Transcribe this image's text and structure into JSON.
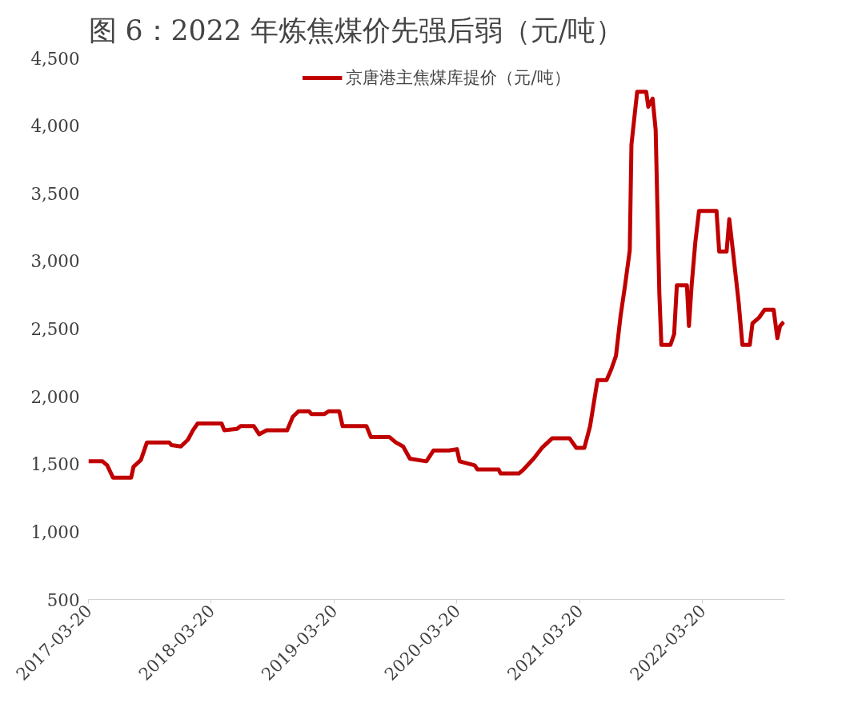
{
  "chart_data": {
    "type": "line",
    "title": "图 6：2022 年炼焦煤价先强后弱（元/吨）",
    "x": [
      "2017-03-20",
      "2017-05-01",
      "2017-05-15",
      "2017-06-01",
      "2017-07-25",
      "2017-08-01",
      "2017-08-23",
      "2017-09-10",
      "2017-11-15",
      "2017-11-22",
      "2017-12-20",
      "2018-01-10",
      "2018-01-25",
      "2018-02-08",
      "2018-04-20",
      "2018-04-28",
      "2018-06-05",
      "2018-06-15",
      "2018-07-25",
      "2018-08-10",
      "2018-09-01",
      "2018-11-01",
      "2018-11-18",
      "2018-12-05",
      "2019-01-05",
      "2019-01-12",
      "2019-02-20",
      "2019-03-05",
      "2019-04-05",
      "2019-04-15",
      "2019-06-25",
      "2019-07-08",
      "2019-09-01",
      "2019-09-20",
      "2019-10-12",
      "2019-11-01",
      "2019-12-20",
      "2020-01-10",
      "2020-02-25",
      "2020-03-20",
      "2020-03-28",
      "2020-05-12",
      "2020-05-20",
      "2020-07-22",
      "2020-07-28",
      "2020-09-20",
      "2020-10-04",
      "2020-11-03",
      "2020-11-28",
      "2020-12-28",
      "2021-02-18",
      "2021-03-10",
      "2021-04-03",
      "2021-04-20",
      "2021-05-12",
      "2021-06-08",
      "2021-06-22",
      "2021-07-06",
      "2021-07-20",
      "2021-08-02",
      "2021-08-16",
      "2021-08-21",
      "2021-09-07",
      "2021-10-04",
      "2021-10-10",
      "2021-10-23",
      "2021-11-01",
      "2021-11-12",
      "2021-11-18",
      "2021-12-15",
      "2021-12-26",
      "2022-01-03",
      "2022-02-02",
      "2022-02-08",
      "2022-02-16",
      "2022-02-27",
      "2022-03-10",
      "2022-05-01",
      "2022-05-09",
      "2022-05-31",
      "2022-06-08",
      "2022-06-19",
      "2022-07-06",
      "2022-07-17",
      "2022-08-08",
      "2022-08-16",
      "2022-09-04",
      "2022-09-21",
      "2022-10-18",
      "2022-10-29",
      "2022-11-06",
      "2022-11-17"
    ],
    "series": [
      {
        "name": "京唐港主焦煤库提价（元/吨）",
        "color": "#c00000",
        "values": [
          1520,
          1520,
          1490,
          1400,
          1400,
          1480,
          1530,
          1660,
          1660,
          1640,
          1630,
          1680,
          1750,
          1800,
          1800,
          1750,
          1760,
          1780,
          1780,
          1720,
          1750,
          1750,
          1850,
          1890,
          1890,
          1870,
          1870,
          1890,
          1890,
          1780,
          1780,
          1700,
          1700,
          1660,
          1630,
          1540,
          1520,
          1600,
          1600,
          1610,
          1520,
          1490,
          1460,
          1460,
          1430,
          1430,
          1460,
          1540,
          1620,
          1690,
          1690,
          1620,
          1620,
          1780,
          2120,
          2120,
          2200,
          2300,
          2600,
          2820,
          3080,
          3860,
          4250,
          4250,
          4140,
          4200,
          3970,
          2760,
          2380,
          2380,
          2460,
          2820,
          2820,
          2520,
          2820,
          3140,
          3370,
          3370,
          3070,
          3070,
          3310,
          3070,
          2690,
          2380,
          2380,
          2540,
          2580,
          2640,
          2640,
          2430,
          2520,
          2550
        ]
      }
    ],
    "xlim": [
      "2017-03-20",
      "2022-11-20"
    ],
    "xticks": [
      "2017-03-20",
      "2018-03-20",
      "2019-03-20",
      "2020-03-20",
      "2021-03-20",
      "2022-03-20"
    ],
    "ylim": [
      500,
      4500
    ],
    "yticks": [
      {
        "value": 500,
        "label": "500"
      },
      {
        "value": 1000,
        "label": "1,000"
      },
      {
        "value": 1500,
        "label": "1,500"
      },
      {
        "value": 2000,
        "label": "2,000"
      },
      {
        "value": 2500,
        "label": "2,500"
      },
      {
        "value": 3000,
        "label": "3,000"
      },
      {
        "value": 3500,
        "label": "3,500"
      },
      {
        "value": 4000,
        "label": "4,000"
      },
      {
        "value": 4500,
        "label": "4,500"
      }
    ],
    "grid": false,
    "legend": "top",
    "line_style": "solid"
  }
}
